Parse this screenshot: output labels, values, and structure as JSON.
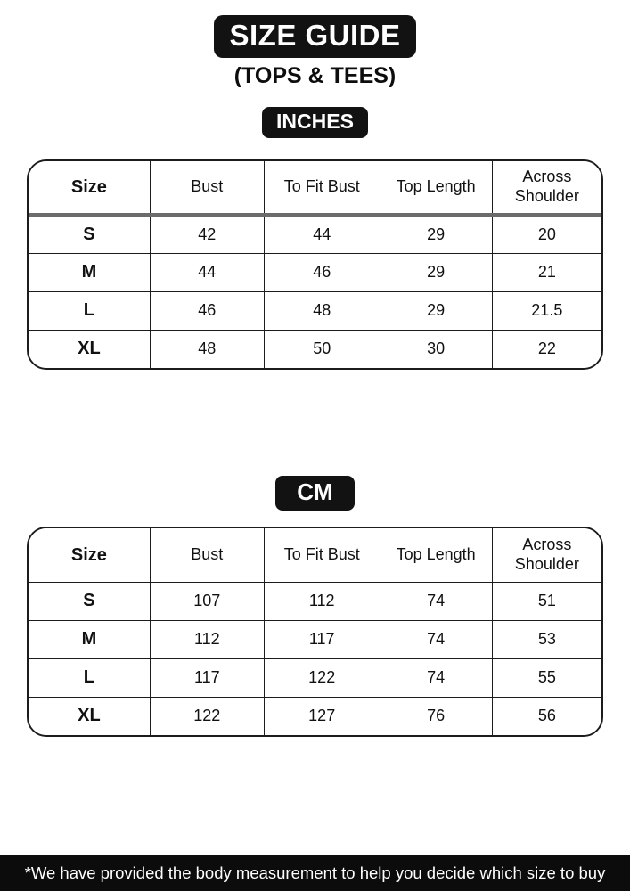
{
  "header": {
    "title": "SIZE GUIDE",
    "subtitle": "(TOPS & TEES)"
  },
  "tables": [
    {
      "unit": "INCHES",
      "columns": [
        "Size",
        "Bust",
        "To Fit Bust",
        "Top Length",
        "Across Shoulder"
      ],
      "rows": [
        {
          "size": "S",
          "values": [
            "42",
            "44",
            "29",
            "20"
          ]
        },
        {
          "size": "M",
          "values": [
            "44",
            "46",
            "29",
            "21"
          ]
        },
        {
          "size": "L",
          "values": [
            "46",
            "48",
            "29",
            "21.5"
          ]
        },
        {
          "size": "XL",
          "values": [
            "48",
            "50",
            "30",
            "22"
          ]
        }
      ]
    },
    {
      "unit": "CM",
      "columns": [
        "Size",
        "Bust",
        "To Fit Bust",
        "Top Length",
        "Across Shoulder"
      ],
      "rows": [
        {
          "size": "S",
          "values": [
            "107",
            "112",
            "74",
            "51"
          ]
        },
        {
          "size": "M",
          "values": [
            "112",
            "117",
            "74",
            "53"
          ]
        },
        {
          "size": "L",
          "values": [
            "117",
            "122",
            "74",
            "55"
          ]
        },
        {
          "size": "XL",
          "values": [
            "122",
            "127",
            "76",
            "56"
          ]
        }
      ]
    }
  ],
  "footer": {
    "note": "*We have provided the body measurement to help you decide which size to buy"
  },
  "colors": {
    "badge_bg": "#121212",
    "badge_text": "#ffffff",
    "table_border": "#1c1c1c",
    "header_divider": "#6b6b6b",
    "footer_bg": "#0c0c0c",
    "footer_text": "#ffffff"
  }
}
